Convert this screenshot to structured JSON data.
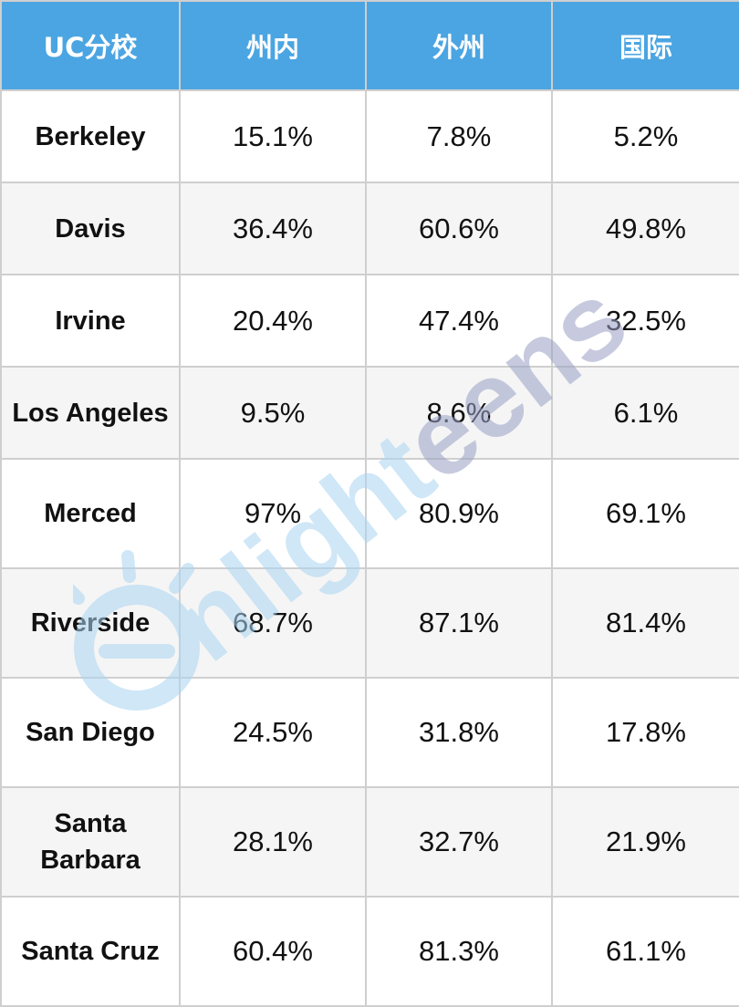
{
  "table": {
    "headers": [
      "UC分校",
      "州内",
      "外州",
      "国际"
    ],
    "rows": [
      {
        "campus": "Berkeley",
        "in_state": "15.1%",
        "out_of_state": "7.8%",
        "international": "5.2%"
      },
      {
        "campus": "Davis",
        "in_state": "36.4%",
        "out_of_state": "60.6%",
        "international": "49.8%"
      },
      {
        "campus": "Irvine",
        "in_state": "20.4%",
        "out_of_state": "47.4%",
        "international": "32.5%"
      },
      {
        "campus": "Los Angeles",
        "in_state": "9.5%",
        "out_of_state": "8.6%",
        "international": "6.1%"
      },
      {
        "campus": "Merced",
        "in_state": "97%",
        "out_of_state": "80.9%",
        "international": "69.1%"
      },
      {
        "campus": "Riverside",
        "in_state": "68.7%",
        "out_of_state": "87.1%",
        "international": "81.4%"
      },
      {
        "campus": "San Diego",
        "in_state": "24.5%",
        "out_of_state": "31.8%",
        "international": "17.8%"
      },
      {
        "campus": "Santa Barbara",
        "in_state": "28.1%",
        "out_of_state": "32.7%",
        "international": "21.9%"
      },
      {
        "campus": "Santa Cruz",
        "in_state": "60.4%",
        "out_of_state": "81.3%",
        "international": "61.1%"
      }
    ]
  },
  "watermark": {
    "text": "nlighteens",
    "brand_color_light": "#a9d5f2",
    "brand_color_dark": "#9aa0c4",
    "icon": "lightbulb-e-logo"
  },
  "colors": {
    "header_bg": "#4ba5e2",
    "header_text": "#ffffff",
    "row_alt_bg": "#f5f5f5",
    "border": "#cfcfcf"
  }
}
